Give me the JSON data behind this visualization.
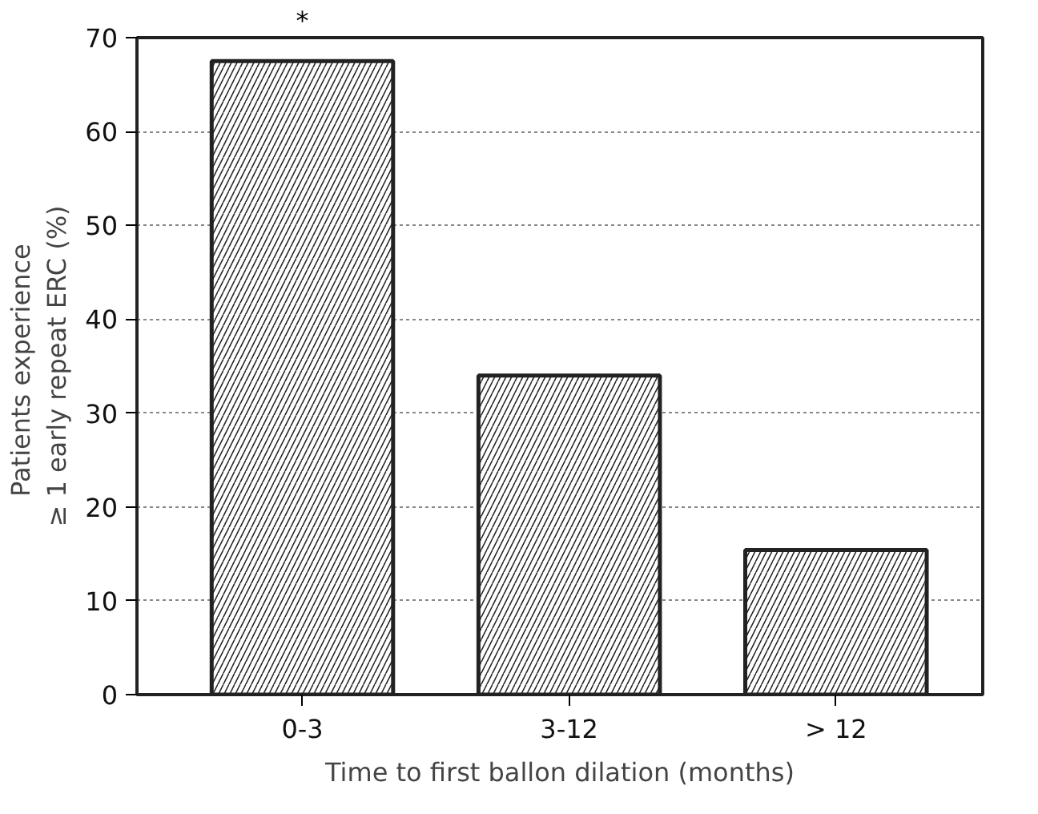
{
  "chart_data": {
    "type": "bar",
    "xlabel": "Time to first ballon dilation (months)",
    "ylabel": "Patients  experience\n≥ 1 early repeat ERC (%)",
    "categories": [
      "0-3",
      "3-12",
      "> 12"
    ],
    "values": [
      67.5,
      34.0,
      15.4
    ],
    "color": "#ffffff",
    "ylim": [
      0,
      70
    ],
    "yticks": [
      0,
      10,
      20,
      30,
      40,
      50,
      60,
      70
    ],
    "grid": "y",
    "annotations": [
      "*"
    ]
  }
}
